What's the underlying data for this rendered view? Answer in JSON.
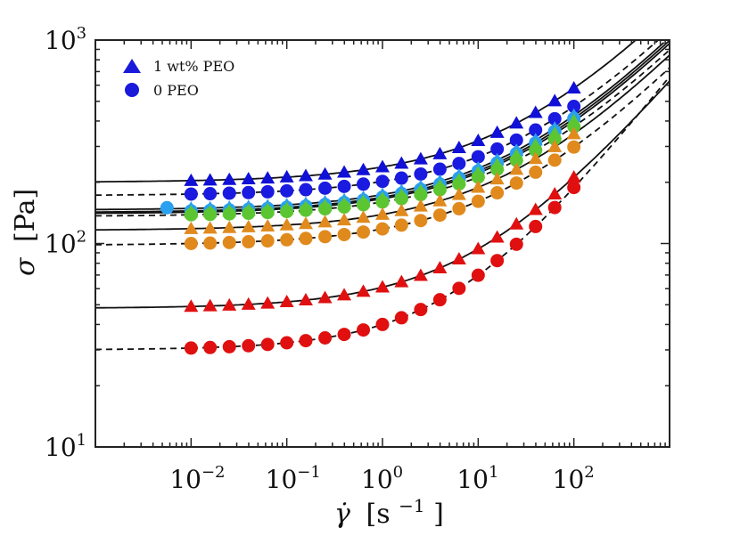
{
  "chart_data": {
    "type": "scatter",
    "xscale": "log",
    "yscale": "log",
    "xlim": [
      0.001,
      1000
    ],
    "ylim": [
      10,
      1000
    ],
    "xlabel_symbol": "γ̇",
    "xlabel_unit": "[s",
    "xlabel_exp": "−1",
    "xlabel_close": "]",
    "ylabel_symbol": "σ",
    "ylabel_unit": "[Pa]",
    "x_ticks": [
      {
        "base": "10",
        "exp": "−2"
      },
      {
        "base": "10",
        "exp": "−1"
      },
      {
        "base": "10",
        "exp": "0"
      },
      {
        "base": "10",
        "exp": "1"
      },
      {
        "base": "10",
        "exp": "2"
      }
    ],
    "y_ticks": [
      {
        "base": "10",
        "exp": "1"
      },
      {
        "base": "10",
        "exp": "2"
      },
      {
        "base": "10",
        "exp": "3"
      }
    ],
    "legend": [
      {
        "label": "1 wt% PEO",
        "marker": "triangle",
        "color": "#1a1adb"
      },
      {
        "label": "0 PEO",
        "marker": "circle",
        "color": "#1a1adb"
      }
    ],
    "series": [
      {
        "name": "blue-peo",
        "marker": "triangle",
        "color": "#1010d6",
        "tau0": 200,
        "K": 38,
        "n": 0.5,
        "fit": "solid"
      },
      {
        "name": "blue-0",
        "marker": "circle",
        "color": "#1a1ae0",
        "tau0": 172,
        "K": 30,
        "n": 0.5,
        "fit": "dashed"
      },
      {
        "name": "light-blue-peo",
        "marker": "triangle",
        "color": "#2aa0f0",
        "tau0": 146,
        "K": 28,
        "n": 0.5,
        "fit": "solid"
      },
      {
        "name": "light-blue-0",
        "marker": "circle",
        "color": "#2aa0f0",
        "tau0": 142,
        "K": 27,
        "n": 0.5,
        "fit": "solid"
      },
      {
        "name": "green-peo",
        "marker": "triangle",
        "color": "#5cc632",
        "tau0": 140,
        "K": 26,
        "n": 0.5,
        "fit": "solid"
      },
      {
        "name": "green-0",
        "marker": "circle",
        "color": "#5cc632",
        "tau0": 136,
        "K": 24,
        "n": 0.5,
        "fit": "dashed"
      },
      {
        "name": "orange-peo",
        "marker": "triangle",
        "color": "#e08a1e",
        "tau0": 116,
        "K": 23,
        "n": 0.5,
        "fit": "solid"
      },
      {
        "name": "orange-0",
        "marker": "circle",
        "color": "#e08a1e",
        "tau0": 98,
        "K": 20,
        "n": 0.5,
        "fit": "dashed"
      },
      {
        "name": "red-peo",
        "marker": "triangle",
        "color": "#e01010",
        "tau0": 48,
        "K": 13,
        "n": 0.55,
        "fit": "solid"
      },
      {
        "name": "red-0",
        "marker": "circle",
        "color": "#e01010",
        "tau0": 30,
        "K": 10,
        "n": 0.6,
        "fit": "dashed"
      }
    ],
    "x_points": [
      0.01,
      0.0158,
      0.0251,
      0.0398,
      0.0631,
      0.1,
      0.158,
      0.251,
      0.398,
      0.631,
      1,
      1.58,
      2.51,
      3.98,
      6.31,
      10,
      15.8,
      25.1,
      39.8,
      63.1,
      100
    ],
    "extra_points": [
      {
        "series": "light-blue-0",
        "x": 0.0056,
        "y": 150
      }
    ]
  }
}
